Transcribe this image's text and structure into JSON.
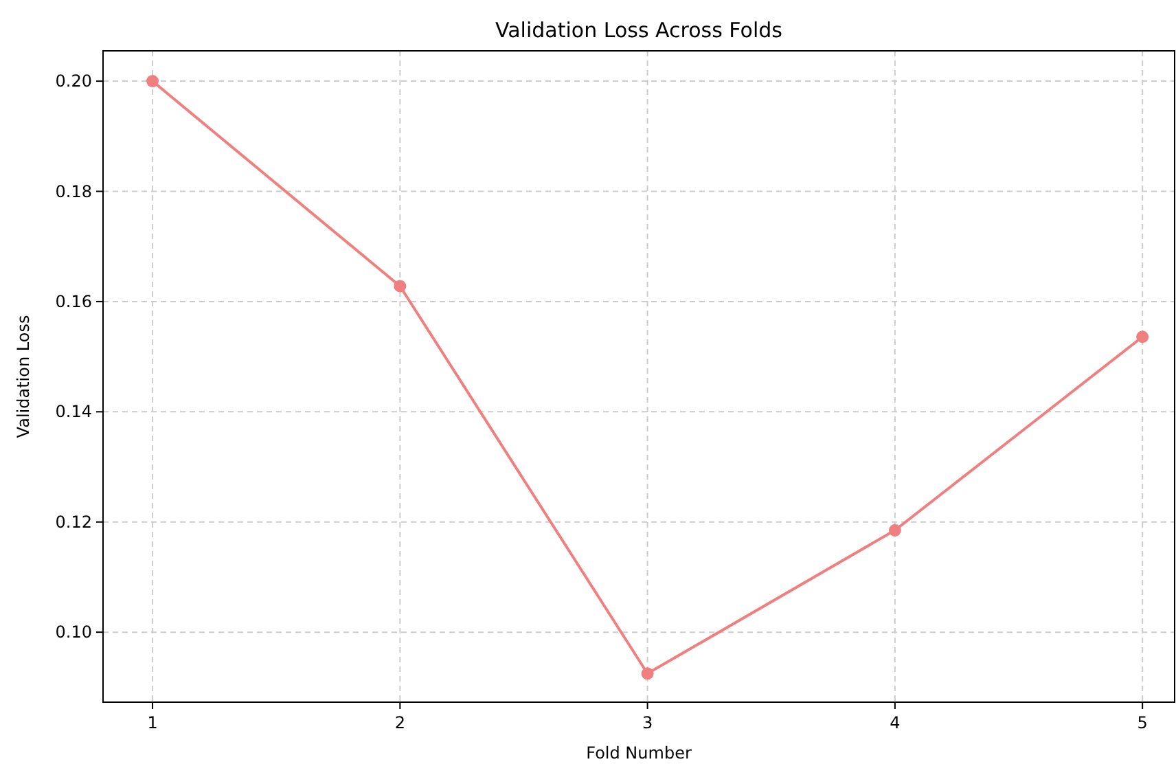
{
  "chart_data": {
    "type": "line",
    "title": "Validation Loss Across Folds",
    "xlabel": "Fold Number",
    "ylabel": "Validation Loss",
    "x": [
      1,
      2,
      3,
      4,
      5
    ],
    "series": [
      {
        "color": "#f08080",
        "values": [
          0.2,
          0.1628,
          0.0925,
          0.1185,
          0.1536
        ]
      }
    ],
    "xlim": [
      0.8,
      5.13
    ],
    "xticks": [
      1,
      2,
      3,
      4,
      5
    ],
    "ylim": [
      0.0873,
      0.2055
    ],
    "yticks": [
      {
        "value": 0.1,
        "label": "0.10"
      },
      {
        "value": 0.12,
        "label": "0.12"
      },
      {
        "value": 0.14,
        "label": "0.14"
      },
      {
        "value": 0.16,
        "label": "0.16"
      },
      {
        "value": 0.18,
        "label": "0.18"
      },
      {
        "value": 0.2,
        "label": "0.20"
      }
    ],
    "grid": true,
    "marker": "circle",
    "line_style": "solid"
  }
}
